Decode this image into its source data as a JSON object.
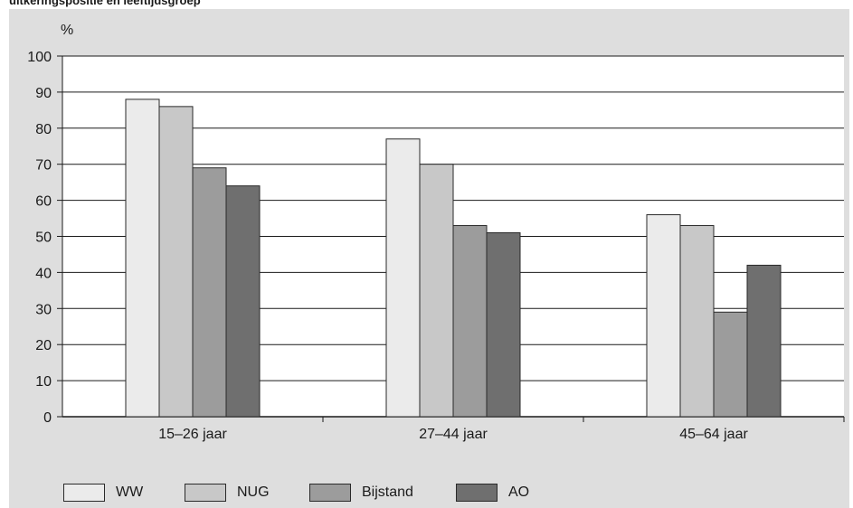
{
  "header": {
    "title": "uitkeringspositie en leeftijdsgroep"
  },
  "chart_data": {
    "type": "bar",
    "ylabel": "%",
    "xlabel": "",
    "ylim": [
      0,
      100
    ],
    "yticks": [
      0,
      10,
      20,
      30,
      40,
      50,
      60,
      70,
      80,
      90,
      100
    ],
    "grid": true,
    "legend_position": "bottom-left",
    "categories": [
      "15–26 jaar",
      "27–44 jaar",
      "45–64 jaar"
    ],
    "series": [
      {
        "name": "WW",
        "values": [
          88,
          77,
          56
        ],
        "color": "#ebebeb"
      },
      {
        "name": "NUG",
        "values": [
          86,
          70,
          53
        ],
        "color": "#c8c8c8"
      },
      {
        "name": "Bijstand",
        "values": [
          69,
          53,
          29
        ],
        "color": "#9c9c9c"
      },
      {
        "name": "AO",
        "values": [
          64,
          51,
          42
        ],
        "color": "#6f6f6f"
      }
    ]
  }
}
